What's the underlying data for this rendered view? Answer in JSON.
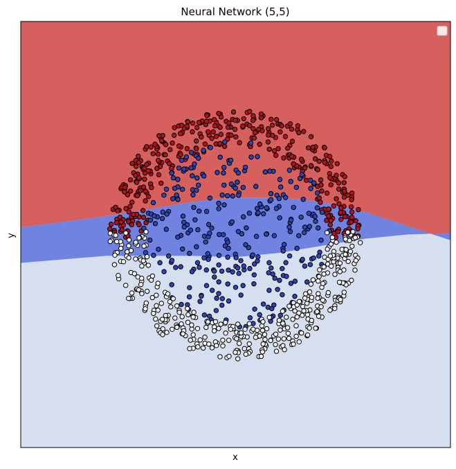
{
  "chart_data": {
    "type": "scatter",
    "title": "Neural Network (5,5)",
    "xlabel": "x",
    "ylabel": "y",
    "xlim": [
      -1.5,
      1.5
    ],
    "ylim": [
      -1.5,
      1.5
    ],
    "ticks_visible": false,
    "grid": false,
    "legend": {
      "placement": "top-right",
      "entries": []
    },
    "decision_regions": {
      "colors": {
        "red": "#d5605e",
        "blue": "#7183e0",
        "light": "#d6dff0"
      },
      "order_top_to_bottom": [
        "red",
        "blue",
        "light"
      ],
      "upper_boundary": [
        {
          "x": -1.5,
          "y": 0.05
        },
        {
          "x": -1.2,
          "y": 0.09
        },
        {
          "x": -0.9,
          "y": 0.13
        },
        {
          "x": -0.6,
          "y": 0.18
        },
        {
          "x": -0.3,
          "y": 0.23
        },
        {
          "x": 0.0,
          "y": 0.26
        },
        {
          "x": 0.3,
          "y": 0.26
        },
        {
          "x": 0.6,
          "y": 0.23
        },
        {
          "x": 0.9,
          "y": 0.16
        },
        {
          "x": 1.2,
          "y": 0.06
        },
        {
          "x": 1.5,
          "y": -0.04
        }
      ],
      "lower_boundary": [
        {
          "x": -1.5,
          "y": -0.2
        },
        {
          "x": -0.9,
          "y": -0.15
        },
        {
          "x": -0.3,
          "y": -0.15
        },
        {
          "x": 0.0,
          "y": -0.16
        },
        {
          "x": 0.3,
          "y": -0.13
        },
        {
          "x": 0.6,
          "y": -0.08
        },
        {
          "x": 0.9,
          "y": -0.03
        },
        {
          "x": 1.2,
          "y": 0.0
        },
        {
          "x": 1.5,
          "y": 0.01
        }
      ]
    },
    "series": [
      {
        "class": "red",
        "color": "#b0141e",
        "region": "upper-ring",
        "count": 380
      },
      {
        "class": "blue",
        "color": "#2e45b8",
        "region": "center",
        "count": 300
      },
      {
        "class": "white",
        "color": "#f2f2f2",
        "region": "lower-ring",
        "count": 380
      }
    ],
    "data_shape": {
      "ring_inner_radius": 0.62,
      "ring_outer_radius": 0.88,
      "inner_disk_radius": 0.66,
      "ring_split_y": 0.0
    }
  }
}
